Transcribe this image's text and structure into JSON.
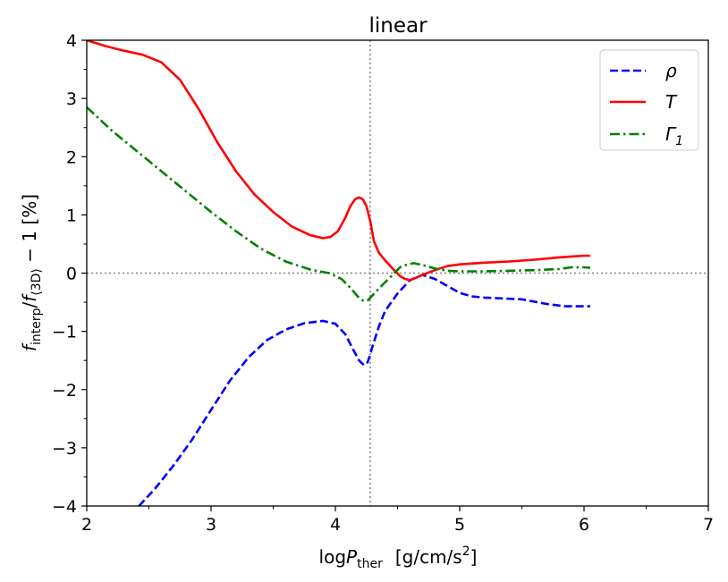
{
  "chart_data": {
    "type": "line",
    "title": "linear",
    "xlabel": {
      "main": "log",
      "var": "P",
      "sub": "ther",
      "units": "[g/cm/s",
      "sup": "2",
      "close": "]"
    },
    "ylabel": {
      "f1": "f",
      "sub1": "interp",
      "slash": "/",
      "f2": "f",
      "sub2": "⟨3D⟩",
      "rest": " − 1  [%]"
    },
    "xlim": [
      2,
      7
    ],
    "ylim": [
      -4,
      4
    ],
    "xticks": [
      2,
      3,
      4,
      5,
      6,
      7
    ],
    "yticks": [
      -4,
      -3,
      -2,
      -1,
      0,
      1,
      2,
      3,
      4
    ],
    "xtick_labels": [
      "2",
      "3",
      "4",
      "5",
      "6",
      "7"
    ],
    "ytick_labels": [
      "−4",
      "−3",
      "−2",
      "−1",
      "0",
      "1",
      "2",
      "3",
      "4"
    ],
    "reference_lines": {
      "x": 4.28,
      "y": 0
    },
    "legend_position": "top-right",
    "series": [
      {
        "name": "ρ",
        "legend_label": "ρ",
        "color": "#0000ff",
        "style": "dashed",
        "x": [
          2.42,
          2.55,
          2.7,
          2.85,
          3.0,
          3.15,
          3.3,
          3.45,
          3.6,
          3.75,
          3.9,
          4.0,
          4.08,
          4.14,
          4.19,
          4.23,
          4.26,
          4.28,
          4.3,
          4.35,
          4.4,
          4.5,
          4.6,
          4.7,
          4.8,
          4.9,
          5.0,
          5.1,
          5.2,
          5.3,
          5.5,
          5.7,
          5.85,
          6.0,
          6.05
        ],
        "y": [
          -4.0,
          -3.7,
          -3.3,
          -2.85,
          -2.35,
          -1.85,
          -1.45,
          -1.15,
          -0.97,
          -0.86,
          -0.82,
          -0.87,
          -1.05,
          -1.3,
          -1.5,
          -1.58,
          -1.53,
          -1.4,
          -1.25,
          -0.92,
          -0.65,
          -0.35,
          -0.12,
          -0.03,
          -0.1,
          -0.22,
          -0.34,
          -0.4,
          -0.42,
          -0.43,
          -0.45,
          -0.53,
          -0.57,
          -0.57,
          -0.57
        ]
      },
      {
        "name": "T",
        "legend_label": "T",
        "color": "#ff0000",
        "style": "solid",
        "x": [
          2.0,
          2.15,
          2.3,
          2.45,
          2.6,
          2.75,
          2.9,
          3.05,
          3.2,
          3.35,
          3.5,
          3.65,
          3.8,
          3.9,
          3.96,
          4.02,
          4.08,
          4.12,
          4.16,
          4.19,
          4.22,
          4.25,
          4.28,
          4.31,
          4.35,
          4.4,
          4.46,
          4.52,
          4.56,
          4.6,
          4.65,
          4.7,
          4.8,
          4.9,
          5.0,
          5.2,
          5.4,
          5.6,
          5.8,
          6.0,
          6.05
        ],
        "y": [
          4.0,
          3.9,
          3.82,
          3.75,
          3.62,
          3.32,
          2.82,
          2.25,
          1.75,
          1.35,
          1.05,
          0.8,
          0.65,
          0.6,
          0.62,
          0.72,
          0.95,
          1.15,
          1.27,
          1.3,
          1.27,
          1.15,
          0.9,
          0.55,
          0.35,
          0.22,
          0.08,
          -0.05,
          -0.1,
          -0.12,
          -0.08,
          -0.03,
          0.05,
          0.12,
          0.15,
          0.18,
          0.2,
          0.23,
          0.27,
          0.3,
          0.3
        ]
      },
      {
        "name": "Γ1",
        "legend_label": "Γ",
        "legend_sub": "1",
        "color": "#008000",
        "style": "dashdot",
        "x": [
          2.0,
          2.2,
          2.4,
          2.6,
          2.8,
          3.0,
          3.2,
          3.4,
          3.6,
          3.8,
          3.95,
          4.05,
          4.12,
          4.18,
          4.22,
          4.26,
          4.3,
          4.38,
          4.45,
          4.52,
          4.58,
          4.63,
          4.7,
          4.8,
          4.9,
          5.0,
          5.2,
          5.4,
          5.6,
          5.8,
          5.9,
          6.0,
          6.05
        ],
        "y": [
          2.85,
          2.45,
          2.1,
          1.75,
          1.4,
          1.05,
          0.72,
          0.42,
          0.2,
          0.06,
          0.0,
          -0.1,
          -0.25,
          -0.4,
          -0.47,
          -0.47,
          -0.38,
          -0.2,
          -0.05,
          0.1,
          0.15,
          0.17,
          0.14,
          0.08,
          0.04,
          0.03,
          0.03,
          0.04,
          0.05,
          0.07,
          0.1,
          0.1,
          0.09
        ]
      }
    ]
  }
}
